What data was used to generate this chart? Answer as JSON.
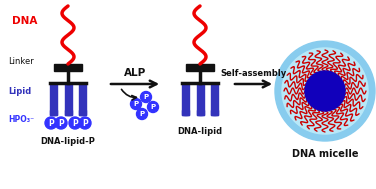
{
  "bg_color": "#ffffff",
  "dna_color": "#ee0000",
  "linker_color": "#111111",
  "lipid_color": "#3333bb",
  "phosphate_color": "#3333ff",
  "phosphate_text_color": "#ffffff",
  "arrow_color": "#111111",
  "micelle_outer_color": "#88ccee",
  "micelle_shell_color": "#b8e8f8",
  "micelle_core_color": "#1100bb",
  "micelle_strand_color": "#cc0000",
  "label_dna": "DNA",
  "label_linker": "Linker",
  "label_lipid": "Lipid",
  "label_hpo3": "HPO₃⁻",
  "label_dna_lipid_p": "DNA-lipid-P",
  "label_dna_lipid": "DNA-lipid",
  "label_alp": "ALP",
  "label_self_assembly": "Self-assembly",
  "label_micelle": "DNA micelle",
  "fig_width": 3.76,
  "fig_height": 1.89,
  "dpi": 100
}
